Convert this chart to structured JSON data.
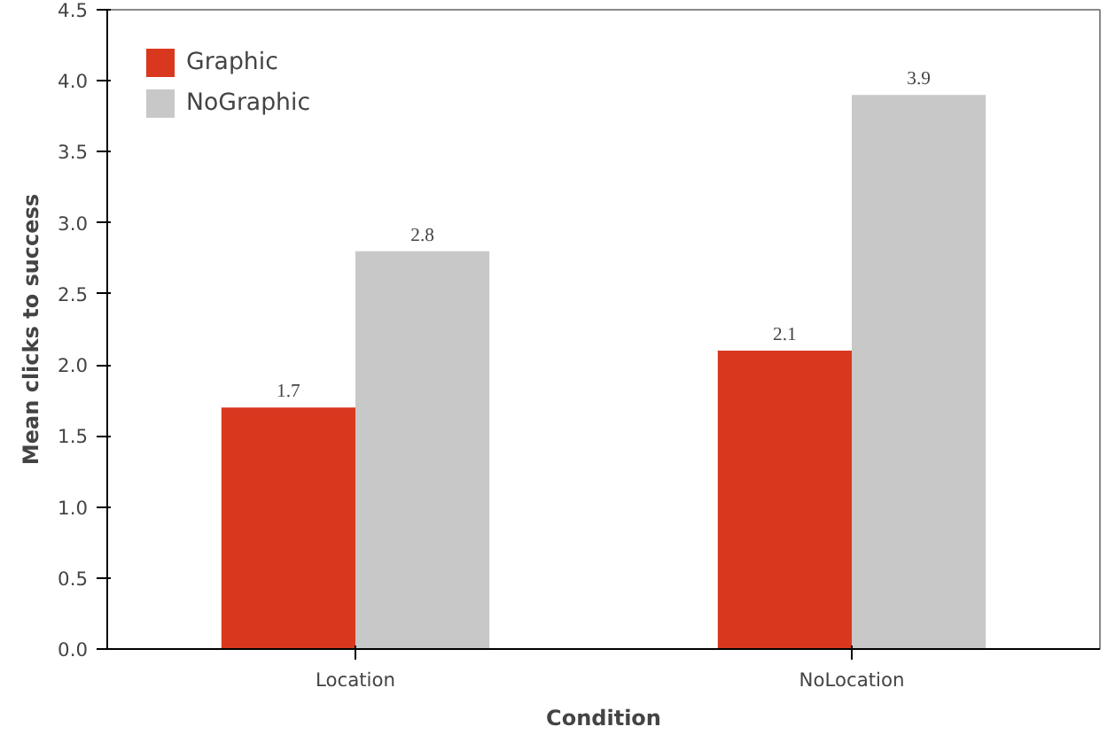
{
  "chart_data": {
    "type": "bar",
    "xlabel": "Condition",
    "ylabel": "Mean clicks to success",
    "categories": [
      "Location",
      "NoLocation"
    ],
    "series": [
      {
        "name": "Graphic",
        "color": "#d9381e",
        "values": [
          1.7,
          2.1
        ]
      },
      {
        "name": "NoGraphic",
        "color": "#c8c8c8",
        "values": [
          2.8,
          3.9
        ]
      }
    ],
    "ylim": [
      0,
      4.5
    ],
    "yticks": [
      {
        "value": 0,
        "label": "0.0"
      },
      {
        "value": 0.5,
        "label": "0.5"
      },
      {
        "value": 1,
        "label": "1.0"
      },
      {
        "value": 1.5,
        "label": "1.5"
      },
      {
        "value": 2,
        "label": "2.0"
      },
      {
        "value": 2.5,
        "label": "2.5"
      },
      {
        "value": 3,
        "label": "3.0"
      },
      {
        "value": 3.5,
        "label": "3.5"
      },
      {
        "value": 4,
        "label": "4.0"
      },
      {
        "value": 4.5,
        "label": "4.5"
      }
    ],
    "data_labels": true,
    "grid": false,
    "legend": "top left"
  }
}
